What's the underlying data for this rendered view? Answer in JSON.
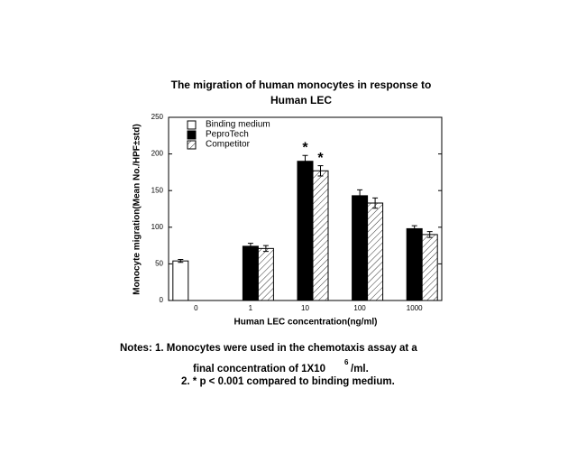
{
  "chart_data": {
    "type": "bar",
    "title": [
      "The migration of human monocytes in response to",
      "Human LEC"
    ],
    "x_label": "Human LEC concentration(ng/ml)",
    "y_label": "Monocyte migration(Mean No./HPF±std)",
    "categories": [
      "0",
      "1",
      "10",
      "100",
      "1000"
    ],
    "series": [
      {
        "name": "Binding medium",
        "color": "#ffffff",
        "values": [
          54,
          null,
          null,
          null,
          null
        ],
        "errors": [
          2,
          null,
          null,
          null,
          null
        ]
      },
      {
        "name": "PeproTech",
        "color": "#000000",
        "values": [
          null,
          74,
          190,
          143,
          98
        ],
        "errors": [
          null,
          4,
          8,
          8,
          4
        ]
      },
      {
        "name": "Competitor",
        "color": "#ffffff",
        "hatch": true,
        "values": [
          null,
          71,
          177,
          133,
          90
        ],
        "errors": [
          null,
          4,
          7,
          7,
          4
        ]
      }
    ],
    "annotations": [
      "*",
      "*"
    ],
    "ylim": [
      0,
      250
    ],
    "yticks": [
      0,
      50,
      100,
      150,
      200,
      250
    ],
    "legend": "upper left",
    "notes": {
      "line1": "Notes:  1.  Monocytes were used in the chemotaxis assay at a",
      "line2a": "final concentration of 1X10",
      "sup": "6",
      "line2b": "/ml.",
      "line3": "2. * p < 0.001 compared to binding medium."
    }
  }
}
